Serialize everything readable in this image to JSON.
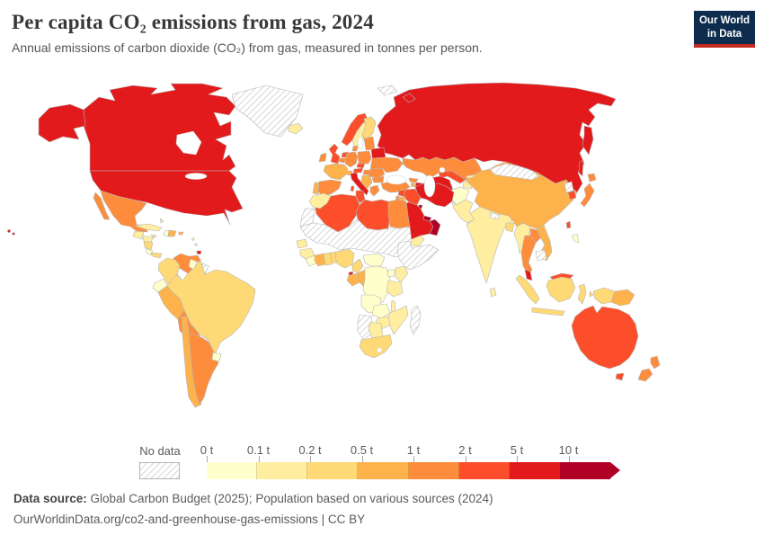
{
  "header": {
    "title": "Per capita CO₂ emissions from gas, 2024",
    "subtitle": "Annual emissions of carbon dioxide (CO₂) from gas, measured in tonnes per person.",
    "logo_line1": "Our World",
    "logo_line2": "in Data",
    "logo_bg": "#0E2D4E",
    "logo_red": "#C52A20"
  },
  "legend": {
    "no_data_label": "No data"
  },
  "footer": {
    "source_label": "Data source:",
    "source_text": " Global Carbon Budget (2025); Population based on various sources (2024)",
    "link_text": "OurWorldinData.org/co2-and-greenhouse-gas-emissions | CC BY"
  },
  "chart_data": {
    "type": "choropleth-map",
    "title": "Per capita CO₂ emissions from gas, 2024",
    "unit": "tonnes per person",
    "year": 2024,
    "legend_position": "bottom",
    "thresholds": [
      "0 t",
      "0.1 t",
      "0.2 t",
      "0.5 t",
      "1 t",
      "2 t",
      "5 t",
      "10 t"
    ],
    "bucket_ranges": {
      "b0": "0–0.1 t",
      "b1": "0.1–0.2 t",
      "b2": "0.2–0.5 t",
      "b3": "0.5–1 t",
      "b4": "1–2 t",
      "b5": "2–5 t",
      "b6": "5–10 t",
      "b7": "10 t and over",
      "nodata": "No data"
    },
    "palette": {
      "b0": "#FFFFCC",
      "b1": "#FFEDA0",
      "b2": "#FED976",
      "b3": "#FEB24C",
      "b4": "#FD8D3C",
      "b5": "#FC4E2A",
      "b6": "#E31A1C",
      "b7": "#B10026"
    },
    "border_color": "#b6b6b6",
    "regions": {
      "canada": "b6",
      "usa": "b6",
      "alaska": "b6",
      "hawaii": "b6",
      "greenland": "nodata",
      "mexico": "b4",
      "baja": "b4",
      "guatemala": "b1",
      "honduras": "b1",
      "nicaragua": "b2",
      "costarica": "b0",
      "panama": "b2",
      "cuba": "b1",
      "jamaica": "b2",
      "haiti": "b0",
      "dominicanrep": "b3",
      "puertorico": "b3",
      "bahamas": "b1",
      "trinidad": "b6",
      "antilles": "b1",
      "venezuela": "b4",
      "colombia": "b2",
      "guyana": "b0",
      "suriname": "nodata",
      "frguiana": "nodata",
      "ecuador": "b0",
      "peru": "b3",
      "brazil": "b2",
      "bolivia": "b4",
      "paraguay": "nodata",
      "chile": "b3",
      "argentina": "b4",
      "uruguay": "b0",
      "iceland": "b1",
      "norway": "b5",
      "sweden": "b1",
      "finland": "b2",
      "denmark": "b4",
      "uk": "b5",
      "ireland": "b4",
      "netherlands": "b5",
      "belgium": "b4",
      "germany": "b4",
      "france": "b3",
      "spain": "b4",
      "portugal": "b3",
      "switzerland": "b3",
      "italy": "b6",
      "sardinia": "b5",
      "sicily": "b6",
      "czechia": "b5",
      "austria": "b5",
      "poland": "b4",
      "hungary": "b4",
      "balkans": "b3",
      "greece": "b4",
      "romania": "b4",
      "bulgaria": "b4",
      "baltics": "b4",
      "belarus": "b6",
      "ukraine": "b4",
      "russia": "b6",
      "kamchatka": "b6",
      "sakhalin": "b6",
      "novayazemlya": "b6",
      "svalbard": "nodata",
      "turkey": "b4",
      "georgia": "b4",
      "azerbaijan": "b6",
      "armenia": "b3",
      "syria": "b5",
      "iraq": "b5",
      "israel": "b4",
      "jordan": "b3",
      "kuwait": "b7",
      "saudiarabia": "b6",
      "yemen": "b1",
      "oman": "b7",
      "uae": "b7",
      "iran": "b6",
      "afghanistan": "b0",
      "pakistan": "b1",
      "turkmenistan": "b6",
      "uzbekistan": "b5",
      "kazakhstan": "b4",
      "kyrgyzstan": "b1",
      "tajikistan": "b1",
      "india": "b1",
      "nepal": "nodata",
      "bangladesh": "b2",
      "srilanka": "b1",
      "china": "b3",
      "mongolia": "nodata",
      "northkorea": "nodata",
      "southkorea": "b5",
      "japan": "b4",
      "hokkaido": "b4",
      "taiwan": "b5",
      "myanmar": "b1",
      "laos": "b4",
      "thailand": "b4",
      "vietnam": "b3",
      "cambodia": "nodata",
      "malaysia": "b6",
      "eastmalaysia": "b5",
      "sumatra": "b2",
      "java": "b2",
      "borneo": "b2",
      "sulawesi": "b2",
      "moluccas": "b2",
      "philippines": "b0",
      "westnewguinea": "b2",
      "png": "b3",
      "australia": "b5",
      "tasmania": "b5",
      "newzealand": "b4",
      "morocco": "b1",
      "westsahara": "nodata",
      "algeria": "b5",
      "tunisia": "b5",
      "libya": "b5",
      "egypt": "b4",
      "saharabelt": "nodata",
      "senegal": "b1",
      "guinea": "b1",
      "liberia": "b0",
      "ivorycoast": "b3",
      "ghana": "b2",
      "togobenin": "b2",
      "nigeria": "b2",
      "cameroon": "b2",
      "eqguinea": "b6",
      "gabon": "b3",
      "congo": "b3",
      "car": "b0",
      "drc": "b0",
      "uganda": "b0",
      "kenya": "b1",
      "horn": "nodata",
      "tanzania": "b1",
      "angola": "b0",
      "zambia": "b0",
      "malawi": "b1",
      "mozambique": "b1",
      "zimbabwe": "b1",
      "namibia": "nodata",
      "botswana": "b1",
      "southafrica": "b2",
      "madagascar": "nodata"
    }
  }
}
